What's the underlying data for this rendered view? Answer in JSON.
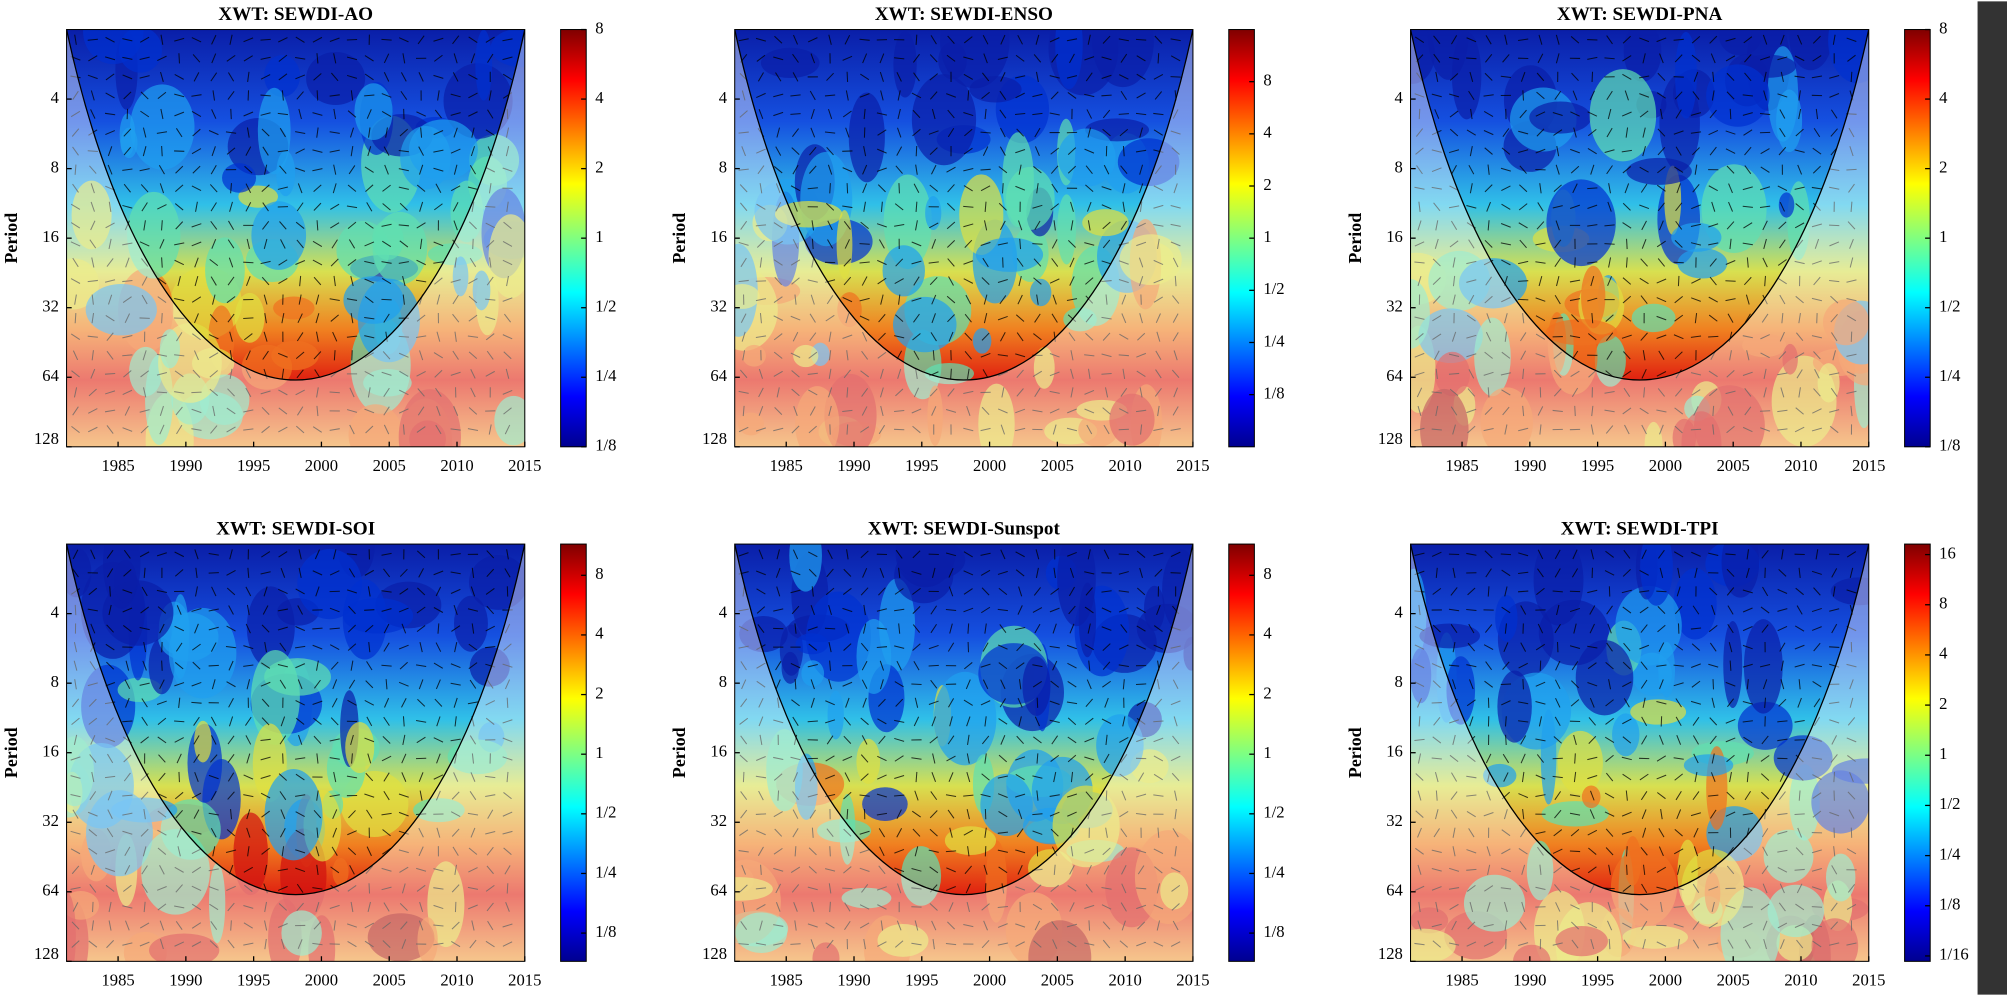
{
  "chart_data": [
    {
      "type": "heatmap",
      "title": "XWT: SEWDI-AO",
      "ylabel": "Period",
      "xlim": [
        1981.2,
        2015
      ],
      "xticks": [
        1985,
        1990,
        1995,
        2000,
        2005,
        2010,
        2015
      ],
      "ylim": [
        2,
        128
      ],
      "yticks": [
        4,
        8,
        16,
        32,
        64,
        128
      ],
      "log_y": true,
      "colorbar_lim": [
        0.125,
        8
      ],
      "colorbar_ticks": [
        {
          "value": 0.125,
          "label": "1/8"
        },
        {
          "value": 0.25,
          "label": "1/4"
        },
        {
          "value": 0.5,
          "label": "1/2"
        },
        1,
        2,
        4,
        8
      ]
    },
    {
      "type": "heatmap",
      "title": "XWT: SEWDI-ENSO",
      "ylabel": "Period",
      "xlim": [
        1981.2,
        2015
      ],
      "xticks": [
        1985,
        1990,
        1995,
        2000,
        2005,
        2010,
        2015
      ],
      "ylim": [
        2,
        128
      ],
      "yticks": [
        4,
        8,
        16,
        32,
        64,
        128
      ],
      "log_y": true,
      "colorbar_lim": [
        0.0625,
        16
      ],
      "colorbar_ticks": [
        {
          "value": 0.125,
          "label": "1/8"
        },
        {
          "value": 0.25,
          "label": "1/4"
        },
        {
          "value": 0.5,
          "label": "1/2"
        },
        1,
        2,
        4,
        8
      ]
    },
    {
      "type": "heatmap",
      "title": "XWT: SEWDI-PNA",
      "ylabel": "Period",
      "xlim": [
        1981.2,
        2015
      ],
      "xticks": [
        1985,
        1990,
        1995,
        2000,
        2005,
        2010,
        2015
      ],
      "ylim": [
        2,
        128
      ],
      "yticks": [
        4,
        8,
        16,
        32,
        64,
        128
      ],
      "log_y": true,
      "colorbar_lim": [
        0.125,
        8
      ],
      "colorbar_ticks": [
        {
          "value": 0.125,
          "label": "1/8"
        },
        {
          "value": 0.25,
          "label": "1/4"
        },
        {
          "value": 0.5,
          "label": "1/2"
        },
        1,
        2,
        4,
        8
      ]
    },
    {
      "type": "heatmap",
      "title": "XWT: SEWDI-SOI",
      "ylabel": "Period",
      "xlim": [
        1981.2,
        2015
      ],
      "xticks": [
        1985,
        1990,
        1995,
        2000,
        2005,
        2010,
        2015
      ],
      "ylim": [
        2,
        128
      ],
      "yticks": [
        4,
        8,
        16,
        32,
        64,
        128
      ],
      "log_y": true,
      "colorbar_lim": [
        0.09,
        11.5
      ],
      "colorbar_ticks": [
        {
          "value": 0.125,
          "label": "1/8"
        },
        {
          "value": 0.25,
          "label": "1/4"
        },
        {
          "value": 0.5,
          "label": "1/2"
        },
        1,
        2,
        4,
        8
      ]
    },
    {
      "type": "heatmap",
      "title": "XWT: SEWDI-Sunspot",
      "ylabel": "Period",
      "xlim": [
        1981.2,
        2015
      ],
      "xticks": [
        1985,
        1990,
        1995,
        2000,
        2005,
        2010,
        2015
      ],
      "ylim": [
        2,
        128
      ],
      "yticks": [
        4,
        8,
        16,
        32,
        64,
        128
      ],
      "log_y": true,
      "colorbar_lim": [
        0.09,
        11.5
      ],
      "colorbar_ticks": [
        {
          "value": 0.125,
          "label": "1/8"
        },
        {
          "value": 0.25,
          "label": "1/4"
        },
        {
          "value": 0.5,
          "label": "1/2"
        },
        1,
        2,
        4,
        8
      ]
    },
    {
      "type": "heatmap",
      "title": "XWT: SEWDI-TPI",
      "ylabel": "Period",
      "xlim": [
        1981.2,
        2015
      ],
      "xticks": [
        1985,
        1990,
        1995,
        2000,
        2005,
        2010,
        2015
      ],
      "ylim": [
        2,
        128
      ],
      "yticks": [
        4,
        8,
        16,
        32,
        64,
        128
      ],
      "log_y": true,
      "colorbar_lim": [
        0.058,
        18.5
      ],
      "colorbar_ticks": [
        {
          "value": 0.0625,
          "label": "1/16"
        },
        {
          "value": 0.125,
          "label": "1/8"
        },
        {
          "value": 0.25,
          "label": "1/4"
        },
        {
          "value": 0.5,
          "label": "1/2"
        },
        1,
        2,
        4,
        8,
        16
      ]
    }
  ]
}
